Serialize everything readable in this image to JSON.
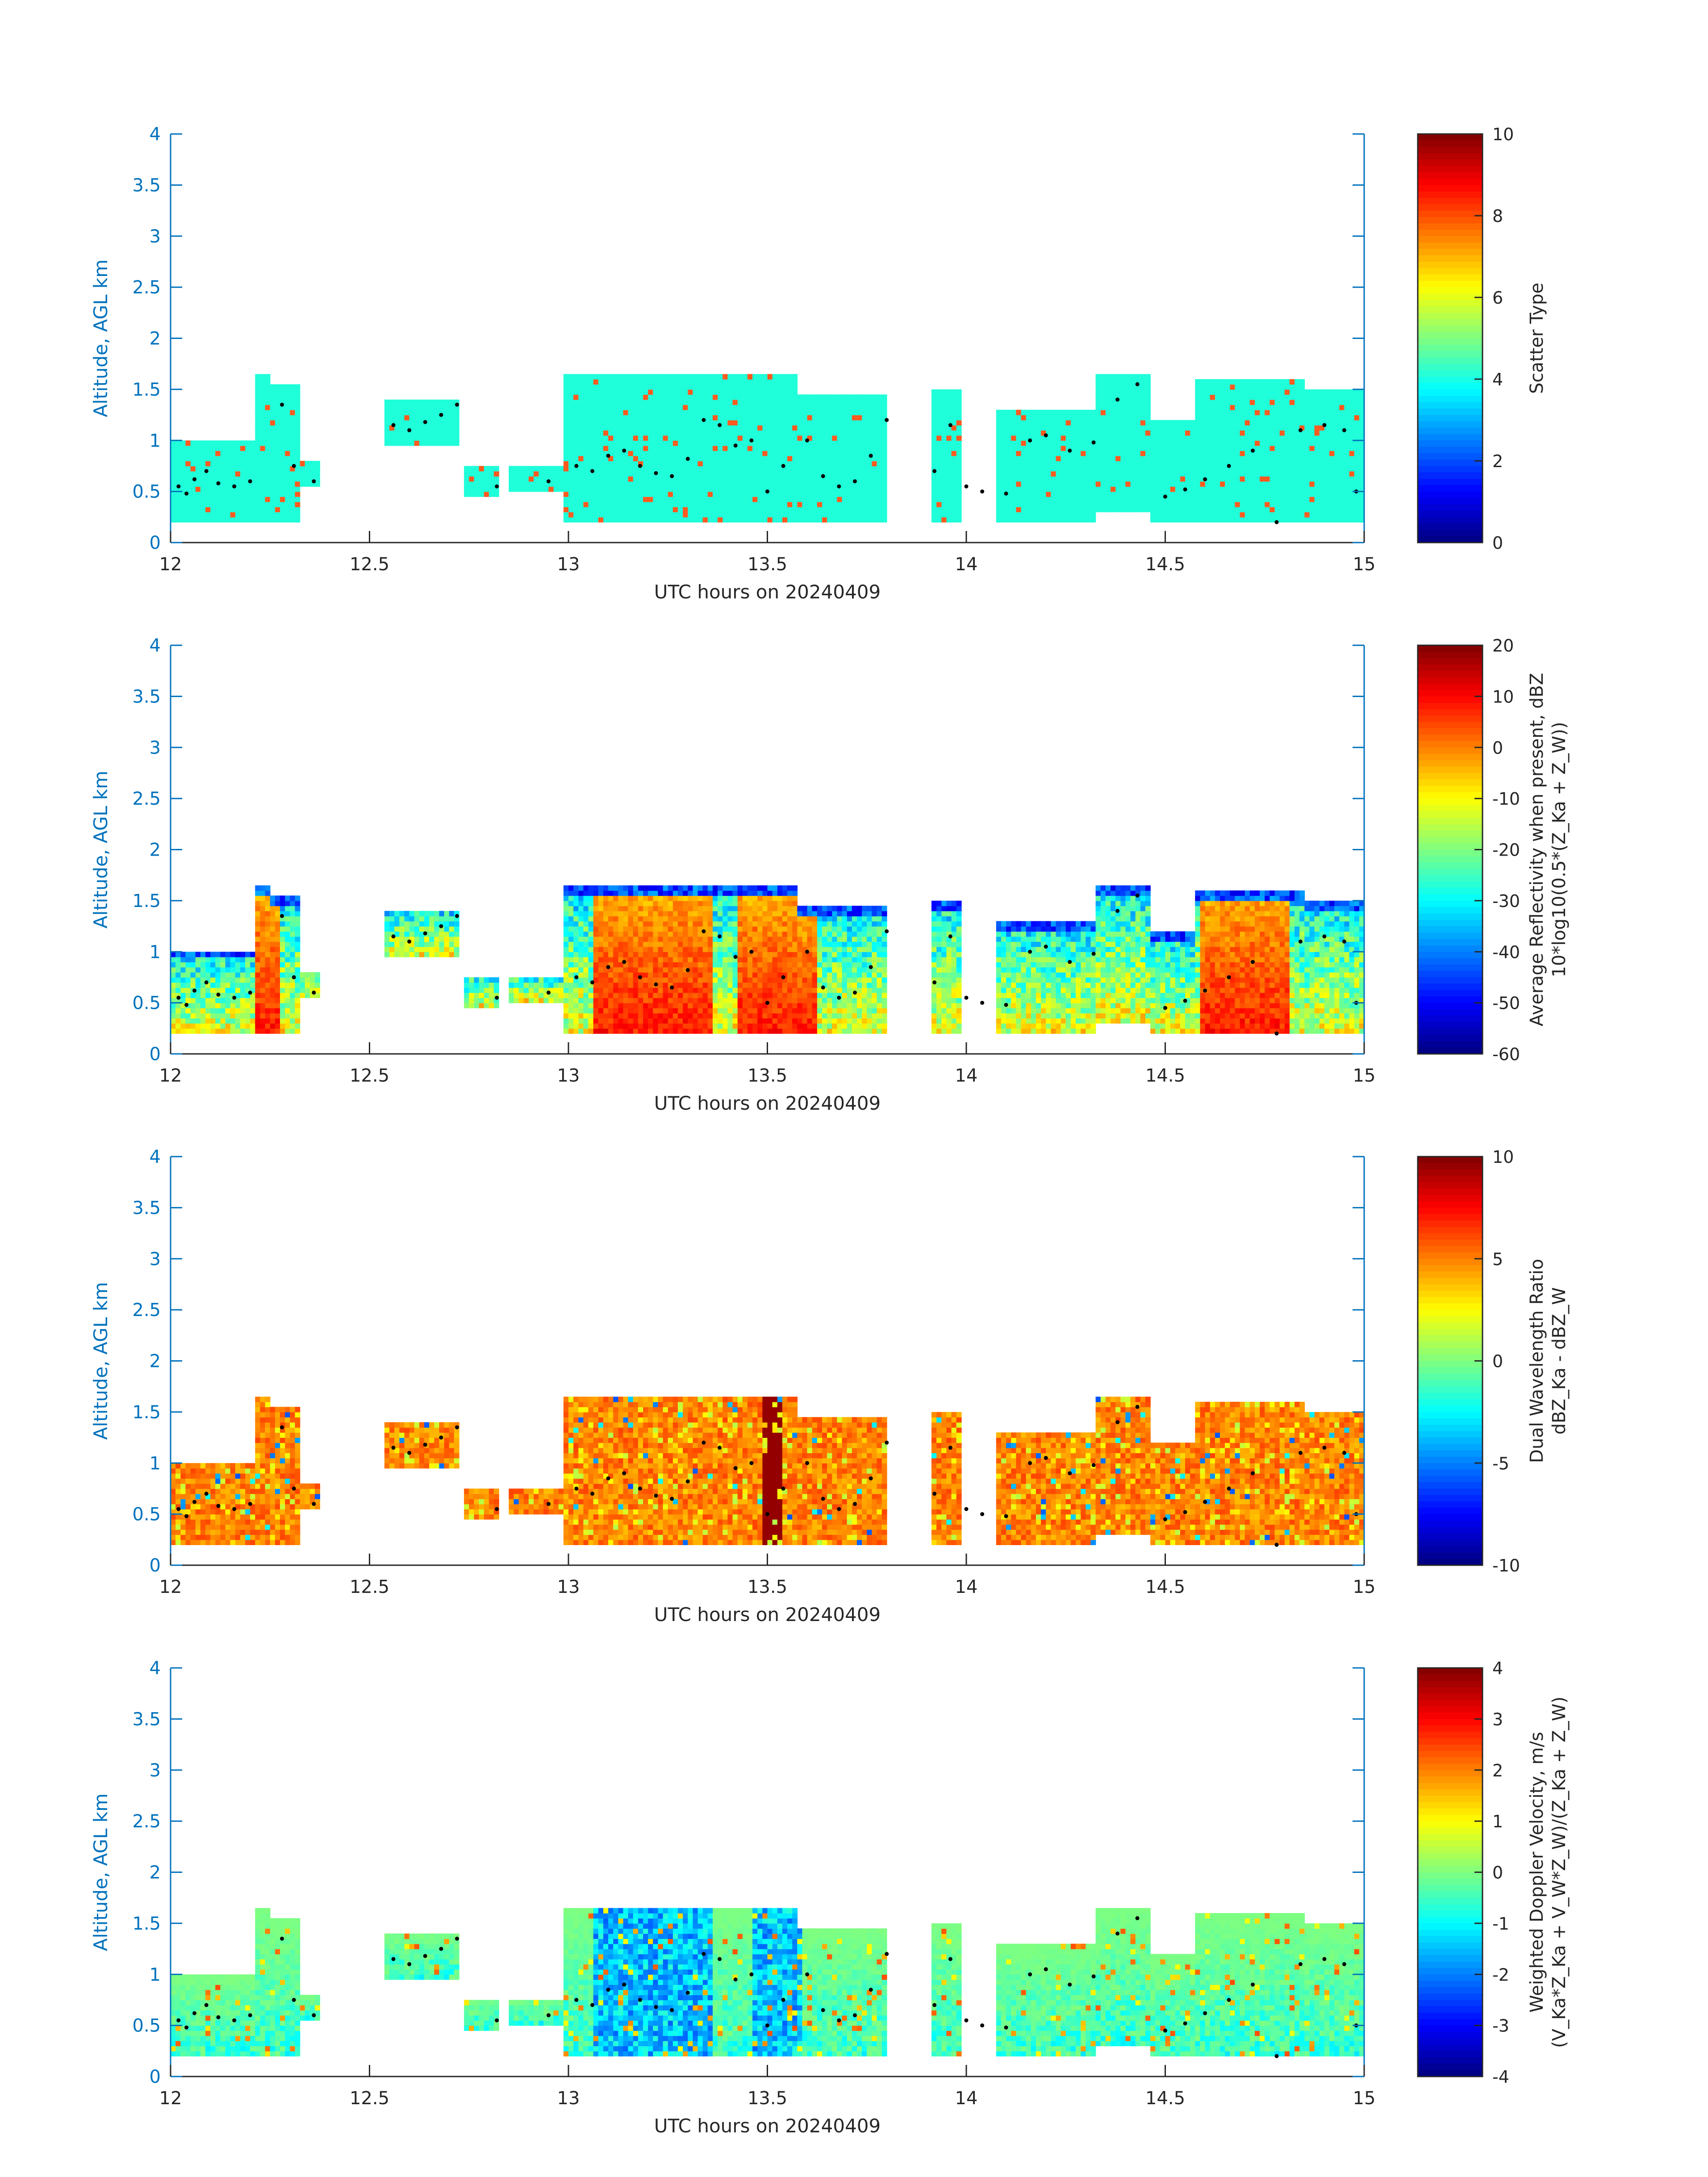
{
  "colors": {
    "axis_blue": "#0072bd",
    "text_dark": "#262626",
    "cloud_cyan": "#1fffd9",
    "scatter_orange": "#ff5a1f",
    "dot": "#000000"
  },
  "colormap": "jet",
  "chart_data": [
    {
      "id": "scatter-type",
      "type": "heatmap",
      "xlabel": "UTC hours on 20240409",
      "ylabel": "Altitude, AGL km",
      "xlim": [
        12,
        15
      ],
      "ylim": [
        0,
        4
      ],
      "xticks": [
        "12",
        "12.5",
        "13",
        "13.5",
        "14",
        "14.5",
        "15"
      ],
      "yticks": [
        "0",
        "0.5",
        "1",
        "1.5",
        "2",
        "2.5",
        "3",
        "3.5",
        "4"
      ],
      "colorbar": {
        "label_lines": [
          "Scatter Type"
        ],
        "range": [
          0,
          10
        ],
        "ticks": [
          "0",
          "2",
          "4",
          "6",
          "8",
          "10"
        ]
      },
      "value_mode": "categorical"
    },
    {
      "id": "reflectivity",
      "type": "heatmap",
      "xlabel": "UTC hours on 20240409",
      "ylabel": "Altitude, AGL km",
      "xlim": [
        12,
        15
      ],
      "ylim": [
        0,
        4
      ],
      "xticks": [
        "12",
        "12.5",
        "13",
        "13.5",
        "14",
        "14.5",
        "15"
      ],
      "yticks": [
        "0",
        "0.5",
        "1",
        "1.5",
        "2",
        "2.5",
        "3",
        "3.5",
        "4"
      ],
      "colorbar": {
        "label_lines": [
          "Average Reflectivity when present, dBZ",
          "10*log10(0.5*(Z_Ka + Z_W))"
        ],
        "range": [
          -60,
          20
        ],
        "ticks": [
          "-60",
          "-50",
          "-40",
          "-30",
          "-20",
          "-10",
          "0",
          "10",
          "20"
        ]
      },
      "value_mode": "reflectivity"
    },
    {
      "id": "dwr",
      "type": "heatmap",
      "xlabel": "UTC hours on 20240409",
      "ylabel": "Altitude, AGL km",
      "xlim": [
        12,
        15
      ],
      "ylim": [
        0,
        4
      ],
      "xticks": [
        "12",
        "12.5",
        "13",
        "13.5",
        "14",
        "14.5",
        "15"
      ],
      "yticks": [
        "0",
        "0.5",
        "1",
        "1.5",
        "2",
        "2.5",
        "3",
        "3.5",
        "4"
      ],
      "colorbar": {
        "label_lines": [
          "Dual Wavelength Ratio",
          "dBZ_Ka - dBZ_W"
        ],
        "range": [
          -10,
          10
        ],
        "ticks": [
          "-10",
          "-5",
          "0",
          "5",
          "10"
        ]
      },
      "value_mode": "dwr"
    },
    {
      "id": "doppler",
      "type": "heatmap",
      "xlabel": "UTC hours on 20240409",
      "ylabel": "Altitude, AGL km",
      "xlim": [
        12,
        15
      ],
      "ylim": [
        0,
        4
      ],
      "xticks": [
        "12",
        "12.5",
        "13",
        "13.5",
        "14",
        "14.5",
        "15"
      ],
      "yticks": [
        "0",
        "0.5",
        "1",
        "1.5",
        "2",
        "2.5",
        "3",
        "3.5",
        "4"
      ],
      "colorbar": {
        "label_lines": [
          "Weighted Doppler Velocity, m/s",
          "(V_Ka*Z_Ka + V_W*Z_W)/(Z_Ka + Z_W)"
        ],
        "range": [
          -4,
          4
        ],
        "ticks": [
          "-4",
          "-3",
          "-2",
          "-1",
          "0",
          "1",
          "2",
          "3",
          "4"
        ]
      },
      "value_mode": "doppler"
    }
  ],
  "cloud_extent": {
    "note_units": "hours UTC, km AGL",
    "segments": [
      {
        "t0": 12.0,
        "t1": 12.21,
        "bottom": 0.2,
        "top": 1.0
      },
      {
        "t0": 12.21,
        "t1": 12.25,
        "bottom": 0.2,
        "top": 1.65
      },
      {
        "t0": 12.25,
        "t1": 12.33,
        "bottom": 0.2,
        "top": 1.55
      },
      {
        "t0": 12.33,
        "t1": 12.38,
        "bottom": 0.55,
        "top": 0.8
      },
      {
        "t0": 12.54,
        "t1": 12.73,
        "bottom": 0.95,
        "top": 1.4
      },
      {
        "t0": 12.74,
        "t1": 12.82,
        "bottom": 0.45,
        "top": 0.75
      },
      {
        "t0": 12.85,
        "t1": 12.99,
        "bottom": 0.5,
        "top": 0.75
      },
      {
        "t0": 12.99,
        "t1": 13.58,
        "bottom": 0.2,
        "top": 1.65
      },
      {
        "t0": 13.58,
        "t1": 13.8,
        "bottom": 0.2,
        "top": 1.45
      },
      {
        "t0": 13.91,
        "t1": 13.99,
        "bottom": 0.2,
        "top": 1.5
      },
      {
        "t0": 14.08,
        "t1": 14.33,
        "bottom": 0.2,
        "top": 1.3
      },
      {
        "t0": 14.33,
        "t1": 14.46,
        "bottom": 0.3,
        "top": 1.65
      },
      {
        "t0": 14.46,
        "t1": 14.58,
        "bottom": 0.2,
        "top": 1.2
      },
      {
        "t0": 14.58,
        "t1": 14.85,
        "bottom": 0.2,
        "top": 1.6
      },
      {
        "t0": 14.85,
        "t1": 15.0,
        "bottom": 0.2,
        "top": 1.5
      }
    ]
  },
  "cloud_top_dots": {
    "note_units": "hours UTC, km AGL",
    "points": [
      [
        12.02,
        0.55
      ],
      [
        12.04,
        0.48
      ],
      [
        12.06,
        0.62
      ],
      [
        12.09,
        0.7
      ],
      [
        12.12,
        0.58
      ],
      [
        12.16,
        0.55
      ],
      [
        12.2,
        0.6
      ],
      [
        12.28,
        1.35
      ],
      [
        12.31,
        0.75
      ],
      [
        12.36,
        0.6
      ],
      [
        12.56,
        1.15
      ],
      [
        12.6,
        1.1
      ],
      [
        12.64,
        1.18
      ],
      [
        12.68,
        1.25
      ],
      [
        12.72,
        1.35
      ],
      [
        12.82,
        0.55
      ],
      [
        12.95,
        0.6
      ],
      [
        13.02,
        0.75
      ],
      [
        13.06,
        0.7
      ],
      [
        13.1,
        0.85
      ],
      [
        13.14,
        0.9
      ],
      [
        13.18,
        0.75
      ],
      [
        13.22,
        0.68
      ],
      [
        13.26,
        0.65
      ],
      [
        13.3,
        0.82
      ],
      [
        13.34,
        1.2
      ],
      [
        13.38,
        1.15
      ],
      [
        13.42,
        0.95
      ],
      [
        13.46,
        1.0
      ],
      [
        13.5,
        0.5
      ],
      [
        13.54,
        0.75
      ],
      [
        13.6,
        1.0
      ],
      [
        13.64,
        0.65
      ],
      [
        13.68,
        0.55
      ],
      [
        13.72,
        0.6
      ],
      [
        13.76,
        0.85
      ],
      [
        13.8,
        1.2
      ],
      [
        13.92,
        0.7
      ],
      [
        13.96,
        1.15
      ],
      [
        14.0,
        0.55
      ],
      [
        14.04,
        0.5
      ],
      [
        14.1,
        0.48
      ],
      [
        14.16,
        1.0
      ],
      [
        14.2,
        1.05
      ],
      [
        14.26,
        0.9
      ],
      [
        14.32,
        0.98
      ],
      [
        14.38,
        1.4
      ],
      [
        14.43,
        1.55
      ],
      [
        14.5,
        0.45
      ],
      [
        14.55,
        0.52
      ],
      [
        14.6,
        0.62
      ],
      [
        14.66,
        0.75
      ],
      [
        14.72,
        0.9
      ],
      [
        14.78,
        0.2
      ],
      [
        14.84,
        1.1
      ],
      [
        14.9,
        1.15
      ],
      [
        14.95,
        1.1
      ],
      [
        14.98,
        0.5
      ]
    ]
  }
}
